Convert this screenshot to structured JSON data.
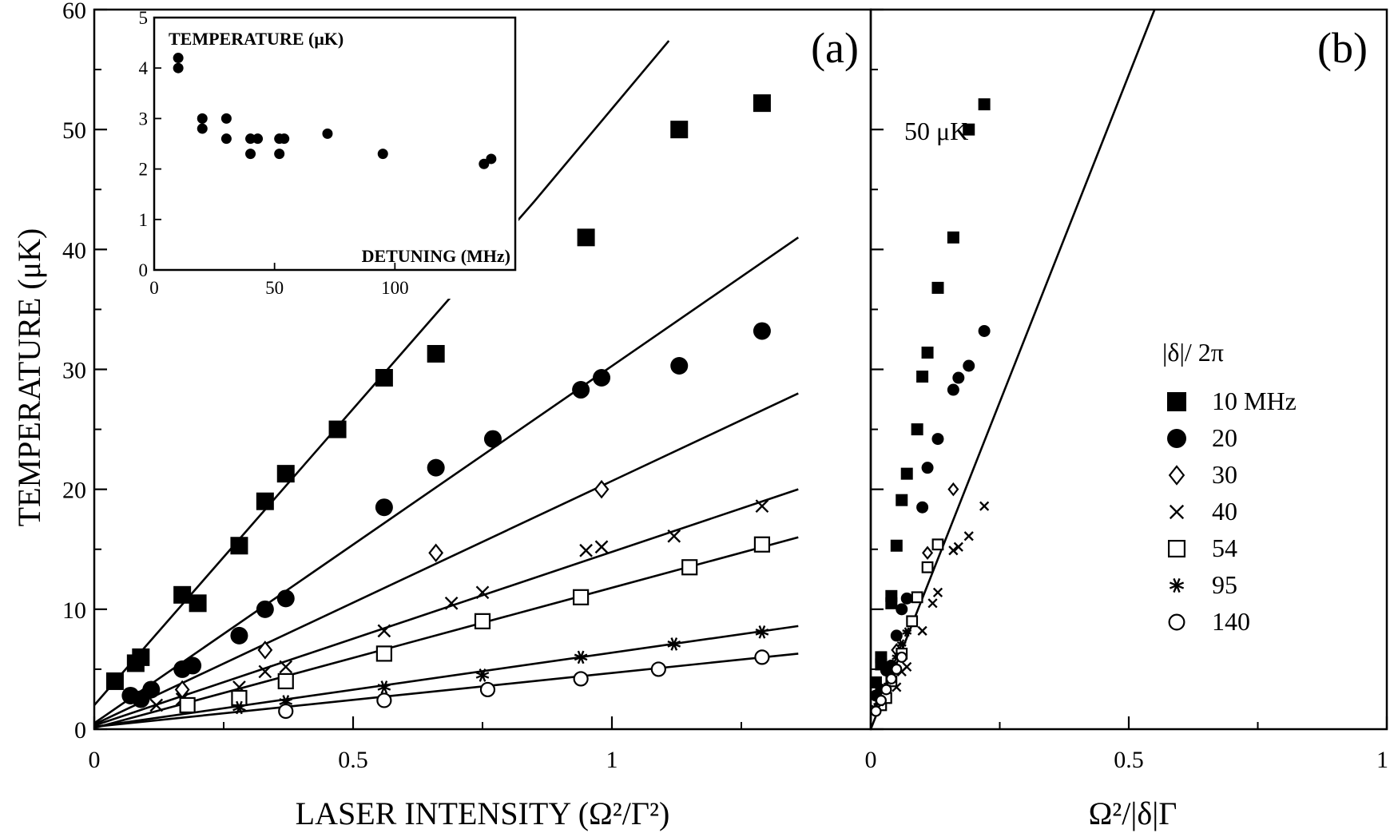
{
  "chart_data": [
    {
      "panel_label": "(a)",
      "type": "scatter",
      "xlabel": "LASER INTENSITY (Ω²/Γ²)",
      "ylabel": "TEMPERATURE (μK)",
      "xlim": [
        0,
        1.5
      ],
      "ylim": [
        0,
        60
      ],
      "xticks": [
        0,
        0.5,
        1
      ],
      "xtick_labels": [
        "0",
        "0.5",
        "1"
      ],
      "yticks": [
        0,
        10,
        20,
        30,
        40,
        50,
        60
      ],
      "ytick_labels": [
        "0",
        "10",
        "20",
        "30",
        "40",
        "50",
        "60"
      ],
      "series": [
        {
          "marker": "filled-square",
          "points": [
            [
              0.04,
              4
            ],
            [
              0.08,
              5.5
            ],
            [
              0.09,
              6
            ],
            [
              0.17,
              11.2
            ],
            [
              0.2,
              10.5
            ],
            [
              0.28,
              15.3
            ],
            [
              0.33,
              19
            ],
            [
              0.37,
              21.3
            ],
            [
              0.47,
              25
            ],
            [
              0.56,
              29.3
            ],
            [
              0.66,
              31.3
            ],
            [
              0.76,
              36.8
            ],
            [
              0.95,
              41
            ],
            [
              1.13,
              50
            ],
            [
              1.29,
              52.2
            ]
          ]
        },
        {
          "marker": "filled-circle",
          "points": [
            [
              0.07,
              2.8
            ],
            [
              0.09,
              2.5
            ],
            [
              0.11,
              3.3
            ],
            [
              0.17,
              5
            ],
            [
              0.19,
              5.3
            ],
            [
              0.28,
              7.8
            ],
            [
              0.33,
              10
            ],
            [
              0.37,
              10.9
            ],
            [
              0.56,
              18.5
            ],
            [
              0.66,
              21.8
            ],
            [
              0.77,
              24.2
            ],
            [
              0.94,
              28.3
            ],
            [
              0.98,
              29.3
            ],
            [
              1.13,
              30.3
            ],
            [
              1.29,
              33.2
            ]
          ]
        },
        {
          "marker": "open-diamond",
          "points": [
            [
              0.17,
              3.3
            ],
            [
              0.33,
              6.6
            ],
            [
              0.66,
              14.7
            ],
            [
              0.98,
              20
            ]
          ]
        },
        {
          "marker": "x",
          "points": [
            [
              0.12,
              2
            ],
            [
              0.17,
              2.5
            ],
            [
              0.28,
              3.5
            ],
            [
              0.33,
              4.8
            ],
            [
              0.37,
              5.2
            ],
            [
              0.56,
              8.2
            ],
            [
              0.69,
              10.5
            ],
            [
              0.75,
              11.4
            ],
            [
              0.95,
              14.9
            ],
            [
              0.98,
              15.2
            ],
            [
              1.12,
              16.1
            ],
            [
              1.29,
              18.6
            ]
          ]
        },
        {
          "marker": "open-square",
          "points": [
            [
              0.18,
              2
            ],
            [
              0.28,
              2.6
            ],
            [
              0.37,
              4
            ],
            [
              0.56,
              6.3
            ],
            [
              0.75,
              9
            ],
            [
              0.94,
              11
            ],
            [
              1.15,
              13.5
            ],
            [
              1.29,
              15.4
            ]
          ]
        },
        {
          "marker": "asterisk",
          "points": [
            [
              0.28,
              1.8
            ],
            [
              0.37,
              2.3
            ],
            [
              0.56,
              3.5
            ],
            [
              0.75,
              4.5
            ],
            [
              0.94,
              6
            ],
            [
              1.12,
              7.1
            ],
            [
              1.29,
              8.1
            ]
          ]
        },
        {
          "marker": "open-circle",
          "points": [
            [
              0.37,
              1.5
            ],
            [
              0.56,
              2.4
            ],
            [
              0.76,
              3.3
            ],
            [
              0.94,
              4.2
            ],
            [
              1.09,
              5
            ],
            [
              1.29,
              6
            ]
          ]
        }
      ],
      "fit_lines": [
        [
          [
            0.0,
            2.0
          ],
          [
            0.85,
            44
          ],
          [
            1.11,
            57.4
          ]
        ],
        [
          [
            0.0,
            0.5
          ],
          [
            1.36,
            41
          ]
        ],
        [
          [
            0.0,
            0.4
          ],
          [
            1.36,
            28
          ]
        ],
        [
          [
            0.0,
            0.3
          ],
          [
            1.36,
            20
          ]
        ],
        [
          [
            0.0,
            0.1
          ],
          [
            1.36,
            16
          ]
        ],
        [
          [
            0.0,
            0.2
          ],
          [
            1.36,
            8.6
          ]
        ],
        [
          [
            0.0,
            0.2
          ],
          [
            1.36,
            6.3
          ]
        ]
      ]
    },
    {
      "panel_label": "",
      "type": "scatter",
      "title": "TEMPERATURE (μK)",
      "xlabel": "DETUNING (MHz)",
      "xlim": [
        0,
        150
      ],
      "ylim": [
        0,
        5
      ],
      "xticks": [
        0,
        50,
        100
      ],
      "xtick_labels": [
        "0",
        "50",
        "100"
      ],
      "yticks": [
        0,
        1,
        2,
        3,
        4,
        5
      ],
      "ytick_labels": [
        "0",
        "1",
        "2",
        "3",
        "4",
        "5"
      ],
      "series": [
        {
          "marker": "filled-circle",
          "points": [
            [
              10,
              4.2
            ],
            [
              10,
              4
            ],
            [
              20,
              3
            ],
            [
              20,
              2.8
            ],
            [
              30,
              3
            ],
            [
              30,
              2.6
            ],
            [
              40,
              2.6
            ],
            [
              40,
              2.3
            ],
            [
              43,
              2.6
            ],
            [
              52,
              2.6
            ],
            [
              52,
              2.3
            ],
            [
              54,
              2.6
            ],
            [
              72,
              2.7
            ],
            [
              95,
              2.3
            ],
            [
              137,
              2.1
            ],
            [
              140,
              2.2
            ]
          ]
        }
      ]
    },
    {
      "panel_label": "(b)",
      "type": "scatter",
      "xlabel": "Ω²/|δ|Γ",
      "xlim": [
        0,
        1
      ],
      "ylim": [
        0,
        60
      ],
      "xticks": [
        0,
        0.5,
        1
      ],
      "xtick_labels": [
        "0",
        "0.5",
        "1"
      ],
      "yticks": [
        0,
        10,
        20,
        30,
        40,
        50,
        60
      ],
      "annotation": "50 μK",
      "legend_title": "|δ|/ 2π",
      "legend_position": "right",
      "legend": [
        "10 MHz",
        "20",
        "30",
        "40",
        "54",
        "95",
        "140"
      ],
      "series": [
        {
          "marker": "filled-square",
          "points": [
            [
              0.01,
              3.9
            ],
            [
              0.02,
              5.4
            ],
            [
              0.02,
              6
            ],
            [
              0.04,
              11.1
            ],
            [
              0.04,
              10.5
            ],
            [
              0.05,
              15.3
            ],
            [
              0.06,
              19.1
            ],
            [
              0.07,
              21.3
            ],
            [
              0.09,
              25
            ],
            [
              0.1,
              29.4
            ],
            [
              0.11,
              31.4
            ],
            [
              0.13,
              36.8
            ],
            [
              0.16,
              41
            ],
            [
              0.19,
              50
            ],
            [
              0.22,
              52.1
            ]
          ]
        },
        {
          "marker": "filled-circle",
          "points": [
            [
              0.01,
              2.8
            ],
            [
              0.02,
              3.3
            ],
            [
              0.03,
              4.9
            ],
            [
              0.04,
              5.3
            ],
            [
              0.05,
              7.8
            ],
            [
              0.06,
              10
            ],
            [
              0.07,
              10.9
            ],
            [
              0.1,
              18.5
            ],
            [
              0.11,
              21.8
            ],
            [
              0.13,
              24.2
            ],
            [
              0.16,
              28.3
            ],
            [
              0.17,
              29.3
            ],
            [
              0.19,
              30.3
            ],
            [
              0.22,
              33.2
            ]
          ]
        },
        {
          "marker": "open-diamond",
          "points": [
            [
              0.03,
              3.3
            ],
            [
              0.05,
              6.6
            ],
            [
              0.11,
              14.7
            ],
            [
              0.16,
              20
            ]
          ]
        },
        {
          "marker": "x",
          "points": [
            [
              0.02,
              2
            ],
            [
              0.03,
              2.5
            ],
            [
              0.05,
              3.5
            ],
            [
              0.06,
              4.8
            ],
            [
              0.07,
              5.2
            ],
            [
              0.1,
              8.2
            ],
            [
              0.12,
              10.5
            ],
            [
              0.13,
              11.4
            ],
            [
              0.16,
              14.9
            ],
            [
              0.17,
              15.2
            ],
            [
              0.19,
              16.1
            ],
            [
              0.22,
              18.6
            ]
          ]
        },
        {
          "marker": "open-square",
          "points": [
            [
              0.02,
              2
            ],
            [
              0.03,
              2.6
            ],
            [
              0.04,
              4
            ],
            [
              0.06,
              6.3
            ],
            [
              0.08,
              9
            ],
            [
              0.09,
              11
            ],
            [
              0.11,
              13.5
            ],
            [
              0.13,
              15.4
            ]
          ]
        },
        {
          "marker": "asterisk",
          "points": [
            [
              0.01,
              1.8
            ],
            [
              0.02,
              2.3
            ],
            [
              0.03,
              3.5
            ],
            [
              0.04,
              4.5
            ],
            [
              0.05,
              6
            ],
            [
              0.06,
              7.1
            ],
            [
              0.07,
              8.1
            ]
          ]
        },
        {
          "marker": "open-circle",
          "points": [
            [
              0.01,
              1.5
            ],
            [
              0.02,
              2.4
            ],
            [
              0.03,
              3.3
            ],
            [
              0.04,
              4.2
            ],
            [
              0.05,
              5
            ],
            [
              0.06,
              6
            ]
          ]
        }
      ],
      "fit_lines": [
        [
          [
            0.0,
            0.0
          ],
          [
            0.55,
            60
          ]
        ]
      ]
    }
  ]
}
